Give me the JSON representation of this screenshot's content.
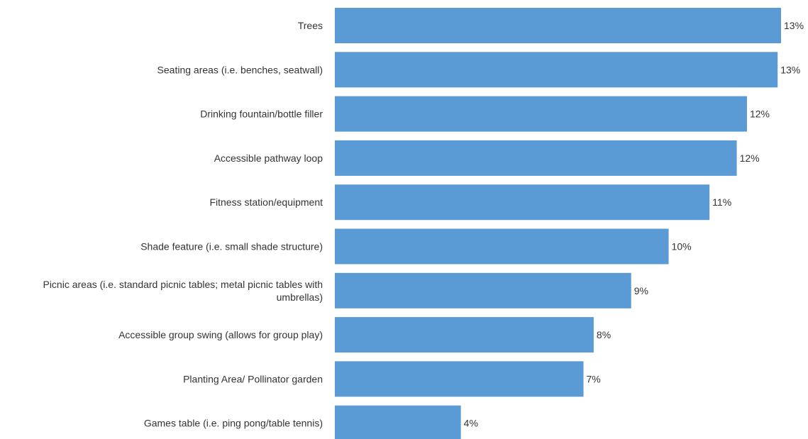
{
  "chart_data": {
    "type": "bar",
    "orientation": "horizontal",
    "categories": [
      "Trees",
      "Seating areas (i.e. benches, seatwall)",
      "Drinking fountain/bottle filler",
      "Accessible pathway loop",
      "Fitness station/equipment",
      "Shade feature (i.e. small shade structure)",
      "Picnic areas (i.e. standard picnic tables; metal picnic tables with umbrellas)",
      "Accessible group swing (allows for group play)",
      "Planting Area/ Pollinator garden",
      "Games table (i.e. ping pong/table tennis)"
    ],
    "category_lines": [
      [
        "Trees"
      ],
      [
        "Seating areas (i.e. benches, seatwall)"
      ],
      [
        "Drinking fountain/bottle filler"
      ],
      [
        "Accessible pathway loop"
      ],
      [
        "Fitness station/equipment"
      ],
      [
        "Shade feature (i.e. small shade structure)"
      ],
      [
        "Picnic areas (i.e. standard picnic tables; metal picnic tables with",
        "umbrellas)"
      ],
      [
        "Accessible group swing (allows for group play)"
      ],
      [
        "Planting Area/ Pollinator garden"
      ],
      [
        "Games table (i.e. ping pong/table tennis)"
      ]
    ],
    "values": [
      13.1,
      13.0,
      12.1,
      11.8,
      11.0,
      9.8,
      8.7,
      7.6,
      7.3,
      3.7
    ],
    "value_labels": [
      "13%",
      "13%",
      "12%",
      "12%",
      "11%",
      "10%",
      "9%",
      "8%",
      "7%",
      "4%"
    ],
    "unit": "%",
    "xlim": [
      0,
      13.1
    ],
    "grid": false,
    "legend": "none",
    "colors": {
      "bar": "#5b9bd5",
      "text": "#333333"
    }
  }
}
